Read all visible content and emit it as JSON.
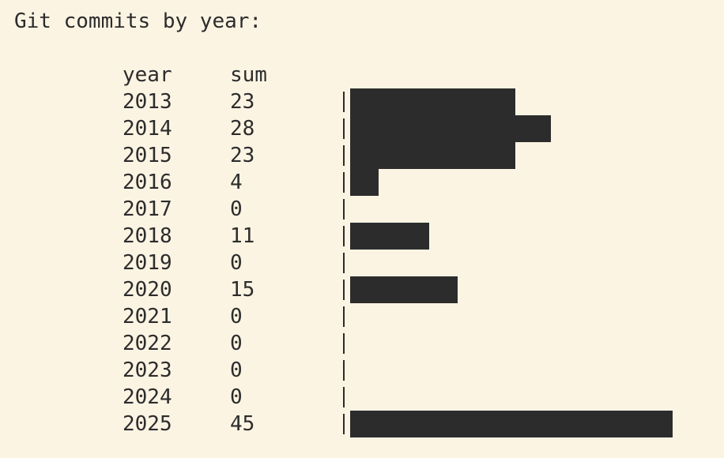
{
  "heading": "Git commits by year:",
  "table": {
    "year_header": "year",
    "sum_header": "sum"
  },
  "chart_data": {
    "type": "bar",
    "orientation": "horizontal",
    "title": "Git commits by year:",
    "xlabel": "sum",
    "ylabel": "year",
    "categories": [
      "2013",
      "2014",
      "2015",
      "2016",
      "2017",
      "2018",
      "2019",
      "2020",
      "2021",
      "2022",
      "2023",
      "2024",
      "2025"
    ],
    "values": [
      23,
      28,
      23,
      4,
      0,
      11,
      0,
      15,
      0,
      0,
      0,
      0,
      45
    ],
    "xlim": [
      0,
      45
    ],
    "grid": false,
    "colors": {
      "bar": "#2c2c2c",
      "background": "#fcf4e3"
    }
  }
}
